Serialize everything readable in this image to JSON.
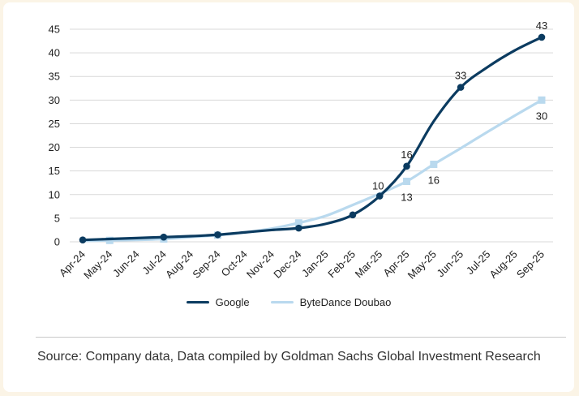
{
  "chart_data": {
    "type": "line",
    "categories": [
      "Apr-24",
      "May-24",
      "Jun-24",
      "Jul-24",
      "Aug-24",
      "Sep-24",
      "Oct-24",
      "Nov-24",
      "Dec-24",
      "Jan-25",
      "Feb-25",
      "Mar-25",
      "Apr-25",
      "May-25",
      "Jun-25",
      "Jul-25",
      "Aug-25",
      "Sep-25"
    ],
    "ylim": [
      0,
      45
    ],
    "yticks": [
      "0",
      "5",
      "10",
      "15",
      "20",
      "25",
      "30",
      "35",
      "40",
      "45"
    ],
    "grid": true,
    "legend_position": "bottom",
    "series": [
      {
        "name": "Google",
        "color": "#0b3b60",
        "marker": "circle",
        "values": [
          0.4,
          0.6,
          0.8,
          1.0,
          1.2,
          1.5,
          2.0,
          2.5,
          2.9,
          3.8,
          5.7,
          9.7,
          16.0,
          25.5,
          32.7,
          37.0,
          40.5,
          43.3
        ],
        "marker_points": [
          0,
          3,
          5,
          8,
          10,
          11,
          12,
          14,
          17
        ],
        "labels": [
          {
            "index": 11,
            "text": "10",
            "position": "above-left"
          },
          {
            "index": 12,
            "text": "16",
            "position": "above"
          },
          {
            "index": 14,
            "text": "33",
            "position": "above"
          },
          {
            "index": 17,
            "text": "43",
            "position": "above"
          }
        ]
      },
      {
        "name": "ByteDance Doubao",
        "color": "#b9d9ee",
        "marker": "square",
        "values": [
          0.2,
          0.3,
          0.4,
          0.6,
          1.0,
          1.4,
          2.0,
          2.8,
          4.0,
          5.5,
          7.8,
          10.2,
          12.8,
          16.4,
          19.8,
          23.3,
          26.7,
          30.0
        ],
        "marker_points": [
          1,
          3,
          5,
          8,
          12,
          13,
          17
        ],
        "labels": [
          {
            "index": 12,
            "text": "13",
            "position": "below"
          },
          {
            "index": 13,
            "text": "16",
            "position": "below"
          },
          {
            "index": 17,
            "text": "30",
            "position": "below"
          }
        ]
      }
    ]
  },
  "legend": {
    "items": [
      "Google",
      "ByteDance Doubao"
    ]
  },
  "source_note": "Source: Company data, Data compiled by Goldman Sachs Global Investment Research"
}
